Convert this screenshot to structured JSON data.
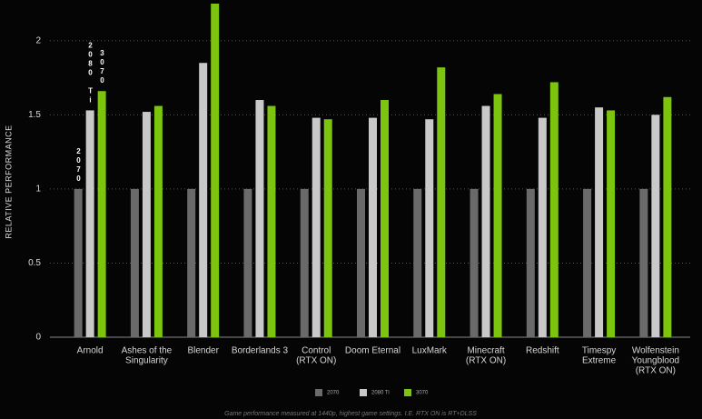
{
  "chart_data": {
    "type": "bar",
    "y_label": "RELATIVE PERFORMANCE",
    "footnote": "Game performance measured at 1440p, highest game settings. I.E. RTX ON is RT+DLSS",
    "categories": [
      [
        "Arnold"
      ],
      [
        "Ashes of the",
        "Singularity"
      ],
      [
        "Blender"
      ],
      [
        "Borderlands 3"
      ],
      [
        "Control",
        "(RTX ON)"
      ],
      [
        "Doom Eternal"
      ],
      [
        "LuxMark"
      ],
      [
        "Minecraft",
        "(RTX ON)"
      ],
      [
        "Redshift"
      ],
      [
        "Timespy",
        "Extreme"
      ],
      [
        "Wolfenstein",
        "Youngblood",
        "(RTX ON)"
      ]
    ],
    "series": [
      {
        "name": "2070",
        "color": "#6a6a6a",
        "values": [
          1,
          1,
          1,
          1,
          1,
          1,
          1,
          1,
          1,
          1,
          1
        ]
      },
      {
        "name": "2080 Ti",
        "color": "#c9c9c9",
        "values": [
          1.53,
          1.52,
          1.85,
          1.6,
          1.48,
          1.48,
          1.47,
          1.56,
          1.48,
          1.55,
          1.5
        ]
      },
      {
        "name": "3070",
        "color": "#7cc40e",
        "values": [
          1.66,
          1.56,
          2.25,
          1.56,
          1.47,
          1.6,
          1.82,
          1.64,
          1.72,
          1.53,
          1.62
        ]
      }
    ],
    "ylim": [
      0,
      2.25
    ],
    "yticks": [
      0,
      0.5,
      1,
      1.5,
      2
    ],
    "grid": true,
    "legend": "bottom"
  }
}
